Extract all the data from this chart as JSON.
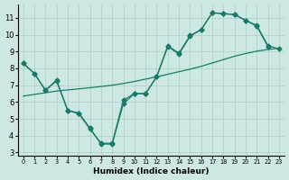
{
  "background_color": "#cde8e2",
  "grid_color": "#a8cfc8",
  "line_color": "#1a7a6a",
  "xlabel": "Humidex (Indice chaleur)",
  "xlim": [
    -0.5,
    23.5
  ],
  "ylim": [
    2.8,
    11.8
  ],
  "xticks": [
    0,
    1,
    2,
    3,
    4,
    5,
    6,
    7,
    8,
    9,
    10,
    11,
    12,
    13,
    14,
    15,
    16,
    17,
    18,
    19,
    20,
    21,
    22,
    23
  ],
  "yticks": [
    3,
    4,
    5,
    6,
    7,
    8,
    9,
    10,
    11
  ],
  "curve1_x": [
    0,
    1,
    2,
    3,
    4,
    5,
    6,
    7,
    8,
    9,
    10,
    11,
    12,
    13,
    14,
    15,
    16,
    17,
    18,
    19,
    20,
    21,
    22
  ],
  "curve1_y": [
    8.3,
    7.7,
    6.7,
    7.25,
    5.5,
    5.35,
    4.45,
    3.5,
    3.5,
    5.9,
    6.5,
    6.5,
    7.5,
    9.3,
    8.85,
    9.9,
    10.3,
    11.3,
    11.25,
    11.2,
    10.85,
    10.5,
    9.3
  ],
  "curve2_x": [
    0,
    1,
    2,
    3,
    4,
    5,
    6,
    7,
    8,
    9,
    10,
    11,
    12,
    13,
    14,
    15,
    16,
    17,
    18,
    19,
    20,
    21,
    22,
    23
  ],
  "curve2_y": [
    8.3,
    7.7,
    6.7,
    7.3,
    5.5,
    5.3,
    4.4,
    3.55,
    3.55,
    6.1,
    6.5,
    6.5,
    7.5,
    9.35,
    8.9,
    9.95,
    10.3,
    11.3,
    11.25,
    11.2,
    10.85,
    10.55,
    9.35,
    9.15
  ],
  "curve3_x": [
    0,
    1,
    2,
    3,
    4,
    5,
    6,
    7,
    8,
    9,
    10,
    11,
    12,
    13,
    14,
    15,
    16,
    17,
    18,
    19,
    20,
    21,
    22,
    23
  ],
  "curve3_y": [
    6.35,
    6.45,
    6.55,
    6.65,
    6.72,
    6.78,
    6.85,
    6.92,
    7.0,
    7.1,
    7.22,
    7.36,
    7.5,
    7.65,
    7.8,
    7.95,
    8.12,
    8.32,
    8.52,
    8.72,
    8.88,
    9.02,
    9.12,
    9.2
  ]
}
